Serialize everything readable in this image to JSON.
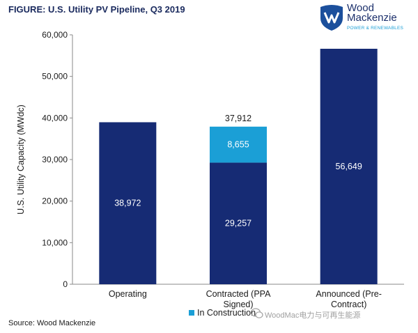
{
  "figure_title": "FIGURE: U.S. Utility PV Pipeline, Q3 2019",
  "logo": {
    "line1": "Wood",
    "line2": "Mackenzie",
    "tagline": "POWER & RENEWABLES",
    "icon": "wood-mackenzie-logo-mark"
  },
  "source": "Source: Wood Mackenzie",
  "watermark": "WoodMac电力与可再生能源",
  "colors": {
    "primary": "#162b74",
    "in_construction": "#1b9fd6",
    "title": "#1a2a5e"
  },
  "chart_data": {
    "type": "bar",
    "stacked": true,
    "ylabel": "U.S. Utility Capacity (MWdc)",
    "xlabel": "",
    "ylim": [
      0,
      60000
    ],
    "yticks": [
      0,
      10000,
      20000,
      30000,
      40000,
      50000,
      60000
    ],
    "ytick_labels": [
      "0",
      "10,000",
      "20,000",
      "30,000",
      "40,000",
      "50,000",
      "60,000"
    ],
    "categories": [
      [
        "Operating"
      ],
      [
        "Contracted (PPA",
        "Signed)"
      ],
      [
        "Announced (Pre-",
        "Contract)"
      ]
    ],
    "series": [
      {
        "values": [
          38972,
          29257,
          56649
        ],
        "labels": [
          "38,972",
          "29,257",
          "56,649"
        ]
      },
      {
        "name": "In Construction",
        "values": [
          0,
          8655,
          0
        ],
        "labels": [
          "",
          "8,655",
          ""
        ]
      }
    ],
    "totals": [
      null,
      37912,
      null
    ],
    "total_labels": [
      "",
      "37,912",
      ""
    ],
    "legend": {
      "entries": [
        "In Construction"
      ],
      "position": "bottom"
    },
    "grid": false
  }
}
